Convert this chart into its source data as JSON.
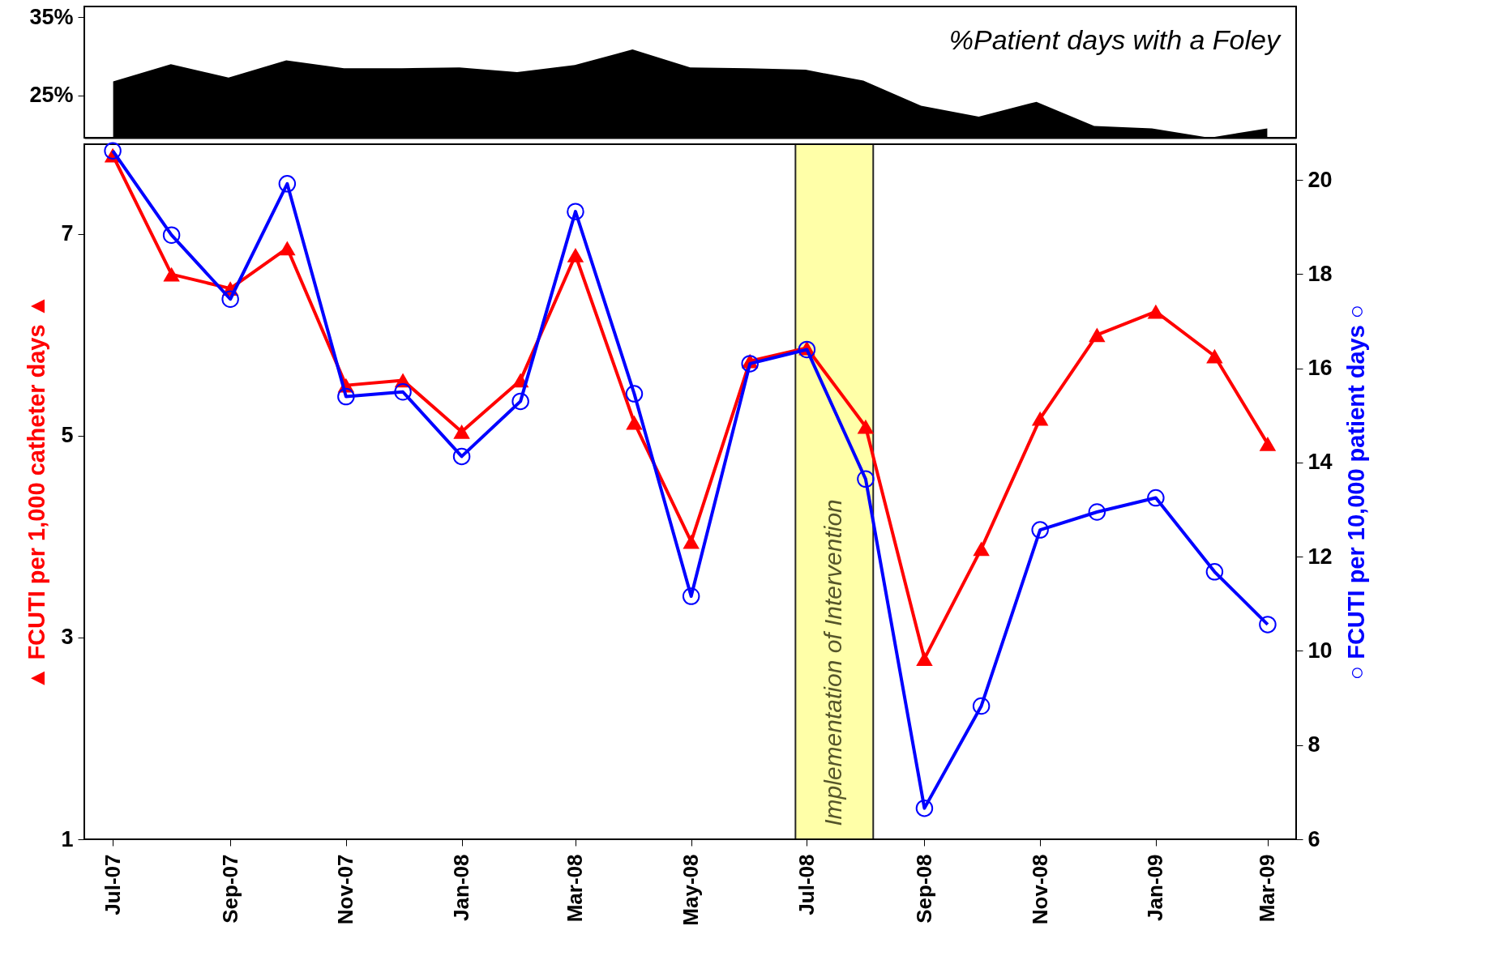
{
  "chart_data": [
    {
      "type": "area",
      "title": "%Patient days with a Foley",
      "color": "#000000",
      "categories": [
        null,
        null,
        null,
        null,
        null,
        null,
        null,
        null,
        null,
        null,
        null,
        null,
        null,
        null,
        null,
        null,
        null,
        null,
        null,
        null,
        null
      ],
      "values": [
        26.8,
        29.0,
        27.3,
        29.5,
        28.5,
        28.5,
        28.6,
        28.0,
        28.9,
        30.9,
        28.6,
        28.5,
        28.3,
        26.9,
        23.7,
        22.3,
        24.2,
        21.1,
        20.8,
        19.6,
        20.8
      ],
      "ylim": [
        19.6,
        36.4
      ],
      "yticks": [
        {
          "value": 35,
          "label": "35%"
        },
        {
          "value": 25,
          "label": "25%"
        }
      ],
      "tick_labels": "y"
    },
    {
      "type": "line",
      "ylabel": "▲ FCUTI per 1,000 catheter days ▲",
      "y2label": "○ FCUTI per 10,000 patient days ○",
      "x": [
        "2007-07",
        "2007-08",
        "2007-09",
        "2007-10",
        "2007-11",
        "2007-12",
        "2008-01",
        "2008-02",
        "2008-03",
        "2008-04",
        "2008-05",
        "2008-06",
        "2008-07",
        "2008-08",
        "2008-09",
        "2008-10",
        "2008-11",
        "2008-12",
        "2009-01",
        "2009-02",
        "2009-03"
      ],
      "xlim": [
        "2007-06-16",
        "2009-03-16"
      ],
      "xticks": [
        {
          "value": "2007-07",
          "label": "Jul-07"
        },
        {
          "value": "2007-09",
          "label": "Sep-07"
        },
        {
          "value": "2007-11",
          "label": "Nov-07"
        },
        {
          "value": "2008-01",
          "label": "Jan-08"
        },
        {
          "value": "2008-03",
          "label": "Mar-08"
        },
        {
          "value": "2008-05",
          "label": "May-08"
        },
        {
          "value": "2008-07",
          "label": "Jul-08"
        },
        {
          "value": "2008-09",
          "label": "Sep-08"
        },
        {
          "value": "2008-11",
          "label": "Nov-08"
        },
        {
          "value": "2009-01",
          "label": "Jan-09"
        },
        {
          "value": "2009-03",
          "label": "Mar-09"
        }
      ],
      "ylim": [
        1,
        7.89
      ],
      "yticks": [
        1,
        3,
        5,
        7
      ],
      "y2lim": [
        6,
        20.76
      ],
      "y2ticks": [
        6,
        8,
        10,
        12,
        14,
        16,
        18,
        20
      ],
      "series": [
        {
          "color": "#ff0000",
          "marker": "triangle",
          "values": [
            7.78,
            6.6,
            6.46,
            6.86,
            5.5,
            5.55,
            5.04,
            5.55,
            6.79,
            5.13,
            3.95,
            5.74,
            5.87,
            5.09,
            2.79,
            3.88,
            5.17,
            6.0,
            6.23,
            5.79,
            4.92
          ]
        },
        {
          "color": "#0000ff",
          "marker": "circle",
          "axis": "y2",
          "values": [
            20.62,
            18.83,
            17.47,
            19.92,
            15.4,
            15.5,
            14.13,
            15.3,
            19.33,
            15.46,
            11.16,
            16.1,
            16.4,
            13.65,
            6.66,
            8.83,
            12.57,
            12.95,
            13.25,
            11.68,
            10.56
          ]
        }
      ],
      "bands": [
        {
          "axis": "x",
          "from": "2008-06-25",
          "to": "2008-08-05",
          "label": "Implementation of Intervention",
          "color": "#ffff99"
        }
      ]
    }
  ]
}
